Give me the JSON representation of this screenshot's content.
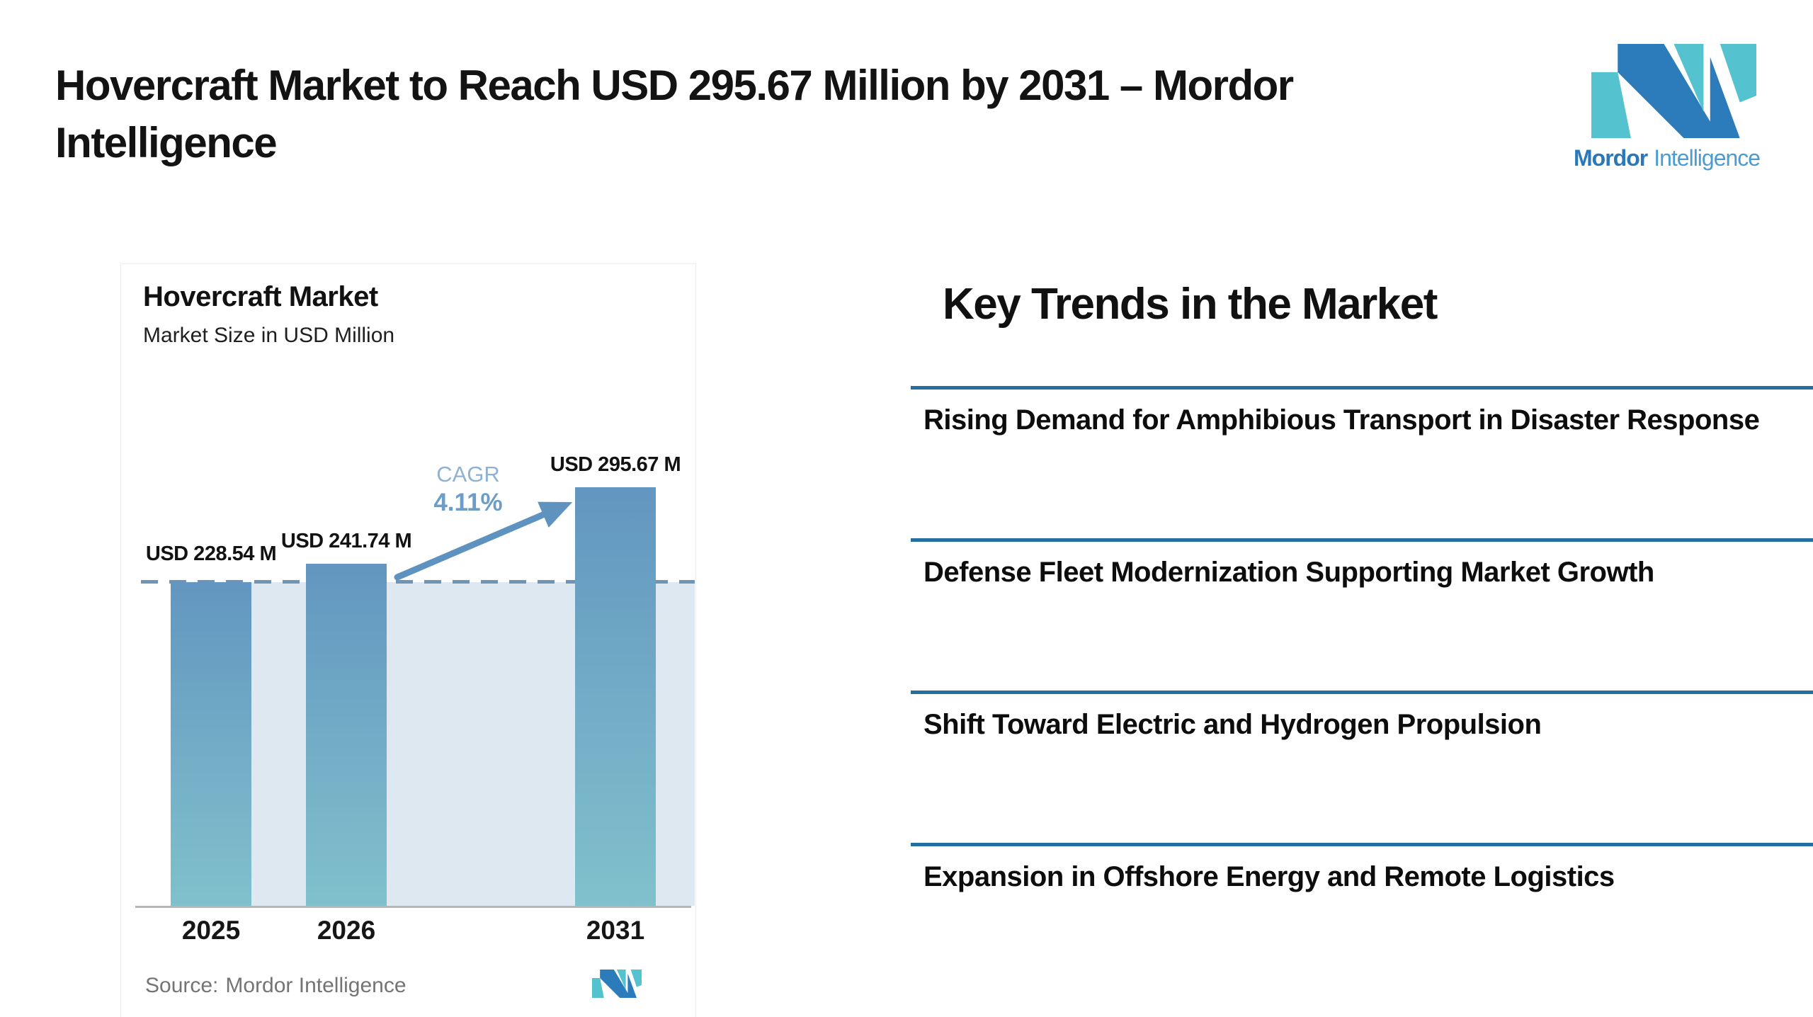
{
  "page": {
    "title": "Hovercraft Market to Reach USD 295.67 Million by 2031 – Mordor Intelligence"
  },
  "logo": {
    "brand_bold": "Mordor",
    "brand_light": "Intelligence"
  },
  "chart_card": {
    "title": "Hovercraft Market",
    "subtitle": "Market Size in USD Million",
    "cagr_label": "CAGR",
    "cagr_value": "4.11%",
    "source_label": "Source:",
    "source_value": "Mordor Intelligence"
  },
  "chart_data": {
    "type": "bar",
    "title": "Hovercraft Market",
    "subtitle": "Market Size in USD Million",
    "unit": "USD Million",
    "categories": [
      "2025",
      "2026",
      "2031"
    ],
    "values": [
      228.54,
      241.74,
      295.67
    ],
    "value_labels": [
      "USD 228.54 M",
      "USD 241.74 M",
      "USD 295.67 M"
    ],
    "cagr_percent": 4.11,
    "cagr_period": [
      "2026",
      "2031"
    ],
    "dashed_line_value": 228.54,
    "ylim": [
      0,
      320
    ],
    "grid": false,
    "legend": false,
    "source": "Mordor Intelligence"
  },
  "trends": {
    "heading": "Key Trends in the Market",
    "items": [
      "Rising Demand for Amphibious Transport in Disaster Response",
      "Defense Fleet Modernization Supporting Market Growth",
      "Shift Toward Electric and Hydrogen Propulsion",
      "Expansion in Offshore Energy and Remote Logistics"
    ]
  },
  "colors": {
    "title_text": "#131313",
    "logo_blue": "#2C7CBB",
    "logo_teal": "#54C3CF",
    "brand_bold_text": "#2878BA",
    "brand_light_text": "#4C9CD4",
    "bar_top": "#6396C0",
    "bar_bottom": "#80C1CC",
    "forecast_fill": "#DEE8F1",
    "dashed": "#6E95B5",
    "arrow": "#5F93BF",
    "cagr_label": "#8FB2D4",
    "cagr_value": "#6C9DC8",
    "axis": "#B6B6B6",
    "rule": "#246F9F",
    "source_text": "#747474"
  }
}
